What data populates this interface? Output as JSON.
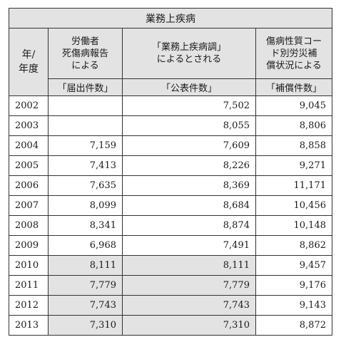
{
  "table": {
    "title": "業務上疾病",
    "headers": {
      "year": "年/\n年度",
      "col1": "労働者\n死傷病報告\nによる",
      "col2": "「業務上疾病調」\nによるとされる",
      "col3": "傷病性質コー\nド別労災補\n償状況による"
    },
    "subheaders": {
      "col1": "「届出件数」",
      "col2": "「公表件数」",
      "col3": "「補償件数」"
    },
    "rows": [
      {
        "year": "2002",
        "col1": "",
        "col2": "7,502",
        "col3": "9,045",
        "highlight": false
      },
      {
        "year": "2003",
        "col1": "",
        "col2": "8,055",
        "col3": "8,806",
        "highlight": false
      },
      {
        "year": "2004",
        "col1": "7,159",
        "col2": "7,609",
        "col3": "8,858",
        "highlight": false
      },
      {
        "year": "2005",
        "col1": "7,413",
        "col2": "8,226",
        "col3": "9,271",
        "highlight": false
      },
      {
        "year": "2006",
        "col1": "7,635",
        "col2": "8,369",
        "col3": "11,171",
        "highlight": false
      },
      {
        "year": "2007",
        "col1": "8,099",
        "col2": "8,684",
        "col3": "10,456",
        "highlight": false
      },
      {
        "year": "2008",
        "col1": "8,341",
        "col2": "8,874",
        "col3": "10,148",
        "highlight": false
      },
      {
        "year": "2009",
        "col1": "6,968",
        "col2": "7,491",
        "col3": "8,862",
        "highlight": false
      },
      {
        "year": "2010",
        "col1": "8,111",
        "col2": "8,111",
        "col3": "9,457",
        "highlight": true
      },
      {
        "year": "2011",
        "col1": "7,779",
        "col2": "7,779",
        "col3": "9,176",
        "highlight": true
      },
      {
        "year": "2012",
        "col1": "7,743",
        "col2": "7,743",
        "col3": "9,143",
        "highlight": true
      },
      {
        "year": "2013",
        "col1": "7,310",
        "col2": "7,310",
        "col3": "8,872",
        "highlight": true
      }
    ]
  }
}
